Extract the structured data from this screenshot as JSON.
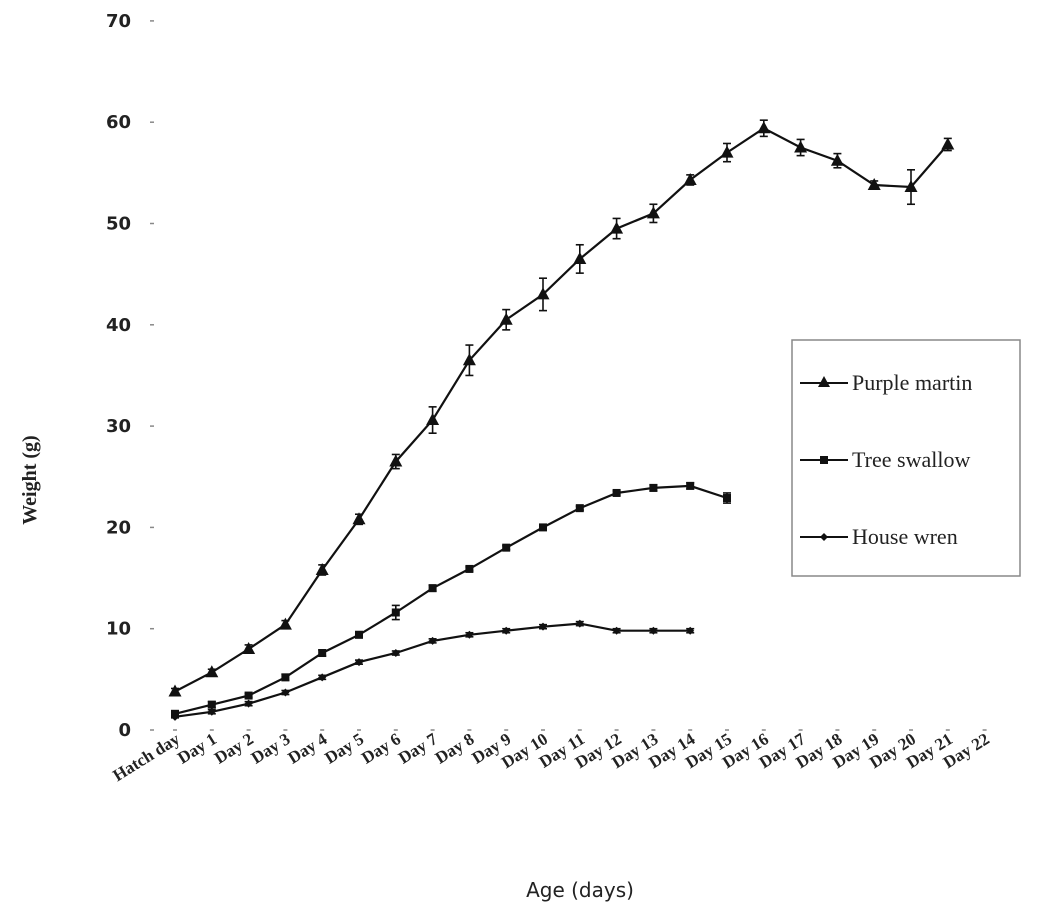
{
  "chart_data": {
    "type": "line",
    "xlabel": "Age (days)",
    "ylabel": "Weight (g)",
    "ylim": [
      0,
      70
    ],
    "yticks": [
      "0",
      "10",
      "20",
      "30",
      "40",
      "50",
      "60",
      "70"
    ],
    "categories": [
      "Hatch day",
      "Day 1",
      "Day 2",
      "Day 3",
      "Day 4",
      "Day 5",
      "Day 6",
      "Day 7",
      "Day 8",
      "Day 9",
      "Day 10",
      "Day 11",
      "Day 12",
      "Day 13",
      "Day 14",
      "Day 15",
      "Day 16",
      "Day 17",
      "Day 18",
      "Day 19",
      "Day 20",
      "Day 21",
      "Day 22"
    ],
    "legend_position": "right",
    "grid": false,
    "series": [
      {
        "name": "Purple martin",
        "marker": "triangle",
        "values": [
          3.8,
          5.7,
          8.0,
          10.4,
          15.8,
          20.8,
          26.5,
          30.6,
          36.5,
          40.5,
          43.0,
          46.5,
          49.5,
          51.0,
          54.3,
          57.0,
          59.4,
          57.5,
          56.2,
          53.8,
          53.6,
          57.8,
          null
        ],
        "errors": [
          0.3,
          0.3,
          0.4,
          0.4,
          0.5,
          0.5,
          0.7,
          1.3,
          1.5,
          1.0,
          1.6,
          1.4,
          1.0,
          0.9,
          0.5,
          0.9,
          0.8,
          0.8,
          0.7,
          0.4,
          1.7,
          0.6,
          null
        ]
      },
      {
        "name": "Tree swallow",
        "marker": "square",
        "values": [
          1.6,
          2.5,
          3.4,
          5.2,
          7.6,
          9.4,
          11.6,
          14.0,
          15.9,
          18.0,
          20.0,
          21.9,
          23.4,
          23.9,
          24.1,
          22.9,
          null,
          null,
          null,
          null,
          null,
          null,
          null
        ],
        "errors": [
          0.2,
          0.3,
          0.2,
          0.3,
          0.3,
          0.3,
          0.7,
          0.3,
          0.2,
          0.2,
          0.2,
          0.2,
          0.2,
          0.3,
          0.3,
          0.5,
          null,
          null,
          null,
          null,
          null,
          null,
          null
        ]
      },
      {
        "name": "House wren",
        "marker": "diamond",
        "values": [
          1.3,
          1.8,
          2.6,
          3.7,
          5.2,
          6.7,
          7.6,
          8.8,
          9.4,
          9.8,
          10.2,
          10.5,
          9.8,
          9.8,
          9.8,
          null,
          null,
          null,
          null,
          null,
          null,
          null,
          null
        ],
        "errors": [
          0.1,
          0.2,
          0.2,
          0.2,
          0.2,
          0.2,
          0.2,
          0.2,
          0.2,
          0.2,
          0.2,
          0.2,
          0.2,
          0.2,
          0.2,
          null,
          null,
          null,
          null,
          null,
          null,
          null,
          null
        ]
      }
    ]
  }
}
